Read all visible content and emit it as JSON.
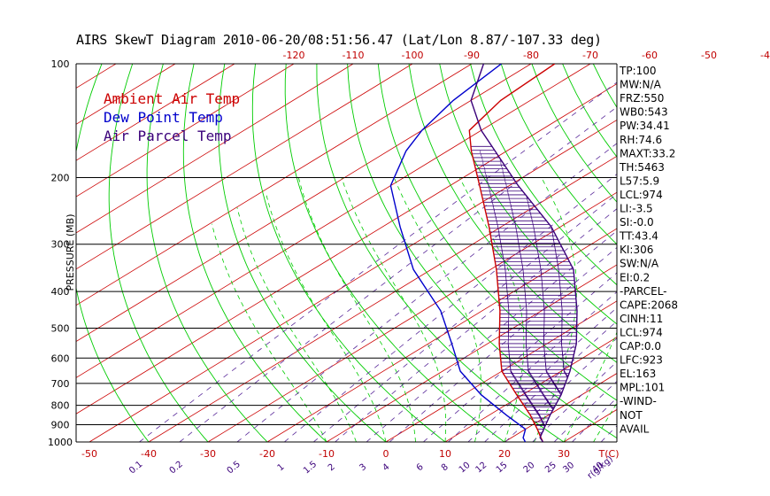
{
  "title": "AIRS SkewT Diagram 2010-06-20/08:51:56.47 (Lat/Lon 8.87/-107.33 deg)",
  "colors": {
    "ambient": "#cc0000",
    "dewpoint": "#0000cc",
    "parcel": "#3a007a",
    "isotherm": "#cc0000",
    "dry_adiabat": "#00cc00",
    "moist_adiabat": "#00cc00",
    "mixing_ratio": "#5a2a9a",
    "isobar": "#000000"
  },
  "chart_data": {
    "type": "line",
    "ylabel": "PRESSURE (MB)",
    "xlabel": "T(C)",
    "mixing_ratio_unit": "r(g/kg)",
    "y_scale": "log",
    "ylim": [
      1000,
      100
    ],
    "pressure_levels": [
      100,
      200,
      300,
      400,
      500,
      600,
      700,
      800,
      900,
      1000
    ],
    "top_ticks": [
      -120,
      -110,
      -100,
      -90,
      -80,
      -70,
      -60,
      -50,
      -40
    ],
    "bottom_ticks": [
      -50,
      -40,
      -30,
      -20,
      -10,
      0,
      10,
      20,
      30
    ],
    "mixing_ratio_ticks": [
      "0.1",
      "0.2",
      "0.5",
      "1",
      "1.5",
      "2",
      "3",
      "4",
      "6",
      "8",
      "10",
      "12",
      "15",
      "20",
      "25",
      "30",
      "40"
    ],
    "legend": [
      {
        "label": "Ambient Air Temp",
        "color": "#cc0000"
      },
      {
        "label": "Dew Point Temp",
        "color": "#0000cc"
      },
      {
        "label": "Air Parcel Temp",
        "color": "#3a007a"
      }
    ],
    "series": [
      {
        "name": "Ambient Air Temp",
        "x": [
          26.5,
          25,
          22,
          17,
          9,
          0,
          -8,
          -17,
          -29,
          -42,
          -55,
          -66,
          -72,
          -75,
          -76
        ],
        "p": [
          1000,
          975,
          925,
          850,
          750,
          650,
          550,
          450,
          350,
          270,
          210,
          170,
          150,
          125,
          100
        ]
      },
      {
        "name": "Dew Point Temp",
        "x": [
          23.5,
          22,
          20,
          13,
          3,
          -7,
          -16,
          -27,
          -43,
          -57,
          -70,
          -77,
          -80,
          -83,
          -85
        ],
        "p": [
          1000,
          975,
          925,
          850,
          750,
          650,
          550,
          450,
          350,
          270,
          210,
          170,
          150,
          125,
          100
        ]
      },
      {
        "name": "Air Parcel Temp",
        "x": [
          26.5,
          24.8,
          23.0,
          20.3,
          16.5,
          11.5,
          5.0,
          -4.0,
          -16.0,
          -31.5,
          -48.5,
          -62.0,
          -70.0,
          -80.0,
          -88.0
        ],
        "p": [
          1000,
          974,
          923,
          850,
          750,
          650,
          550,
          450,
          350,
          270,
          210,
          170,
          150,
          125,
          100
        ]
      }
    ]
  },
  "indices": [
    "TP:100",
    "MW:N/A",
    "FRZ:550",
    "WB0:543",
    "PW:34.41",
    "RH:74.6",
    "MAXT:33.2",
    "TH:5463",
    "L57:5.9",
    "LCL:974",
    "LI:-3.5",
    "SI:-0.0",
    "TT:43.4",
    "KI:306",
    "SW:N/A",
    "EI:0.2",
    "-PARCEL-",
    "CAPE:2068",
    "CINH:11",
    "LCL:974",
    "CAP:0.0",
    "LFC:923",
    "EL:163",
    "MPL:101",
    "-WIND-",
    "NOT",
    "AVAIL"
  ]
}
